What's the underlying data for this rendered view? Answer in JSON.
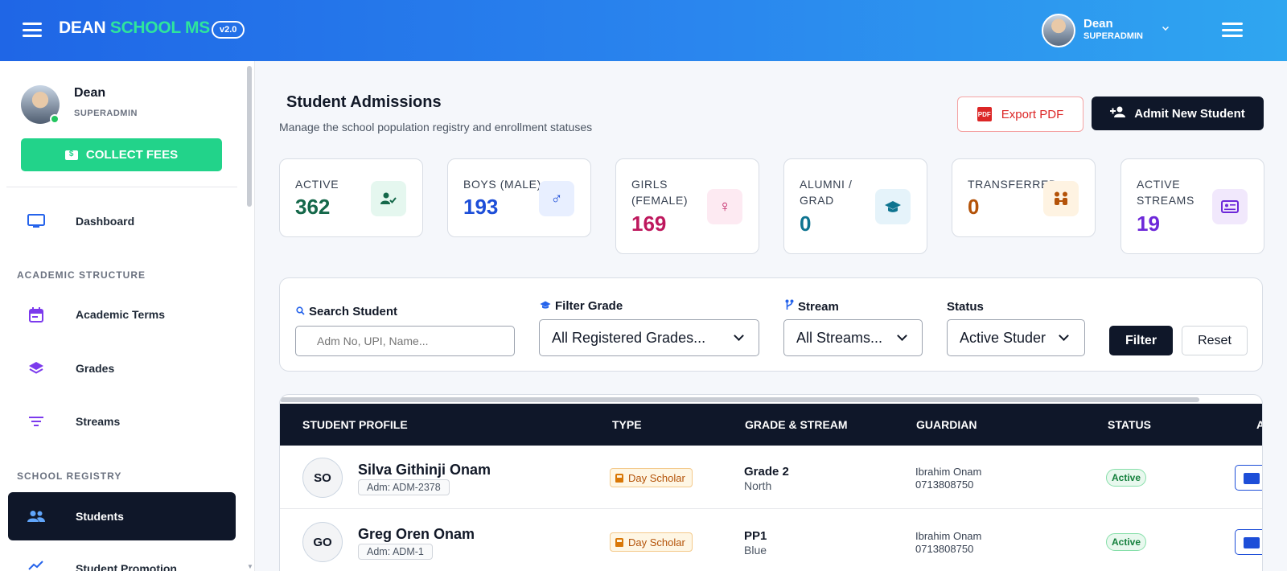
{
  "brand": {
    "name_primary": "DEAN",
    "name_accent": "SCHOOL MS",
    "version": "v2.0"
  },
  "topbar": {
    "user_name": "Dean",
    "user_role": "SUPERADMIN"
  },
  "sidebar": {
    "user_name": "Dean",
    "user_role": "SUPERADMIN",
    "collect_fees_label": "COLLECT FEES",
    "dashboard_label": "Dashboard",
    "section_academic": "ACADEMIC STRUCTURE",
    "academic_terms_label": "Academic Terms",
    "grades_label": "Grades",
    "streams_label": "Streams",
    "section_registry": "SCHOOL REGISTRY",
    "students_label": "Students",
    "promotion_label": "Student Promotion"
  },
  "page": {
    "title": "Student Admissions",
    "subtitle": "Manage the school population registry and enrollment statuses",
    "export_label": "Export PDF",
    "admit_label": "Admit New Student"
  },
  "stats": [
    {
      "label": "ACTIVE",
      "value": "362",
      "color": "#15684a"
    },
    {
      "label": "BOYS (MALE)",
      "value": "193",
      "color": "#1d4ed8"
    },
    {
      "label": "GIRLS (FEMALE)",
      "value": "169",
      "color": "#be185d"
    },
    {
      "label": "ALUMNI / GRAD",
      "value": "0",
      "color": "#0e7490"
    },
    {
      "label": "TRANSFERRED",
      "value": "0",
      "color": "#b45309"
    },
    {
      "label": "ACTIVE STREAMS",
      "value": "19",
      "color": "#6d28d9"
    }
  ],
  "filters": {
    "search_label": "Search Student",
    "search_placeholder": "Adm No, UPI, Name...",
    "grade_label": "Filter Grade",
    "grade_value": "All Registered Grades...",
    "stream_label": "Stream",
    "stream_value": "All Streams...",
    "status_label": "Status",
    "status_value": "Active Studer",
    "filter_btn": "Filter",
    "reset_btn": "Reset"
  },
  "table": {
    "headers": [
      "STUDENT PROFILE",
      "TYPE",
      "GRADE & STREAM",
      "GUARDIAN",
      "STATUS",
      "A"
    ],
    "rows": [
      {
        "initials": "SO",
        "name": "Silva Githinji Onam",
        "adm": "Adm: ADM-2378",
        "type": "Day Scholar",
        "grade": "Grade 2",
        "stream": "North",
        "guardian": "Ibrahim Onam",
        "phone": "0713808750",
        "status": "Active"
      },
      {
        "initials": "GO",
        "name": "Greg Oren Onam",
        "adm": "Adm: ADM-1",
        "type": "Day Scholar",
        "grade": "PP1",
        "stream": "Blue",
        "guardian": "Ibrahim Onam",
        "phone": "0713808750",
        "status": "Active"
      }
    ]
  }
}
